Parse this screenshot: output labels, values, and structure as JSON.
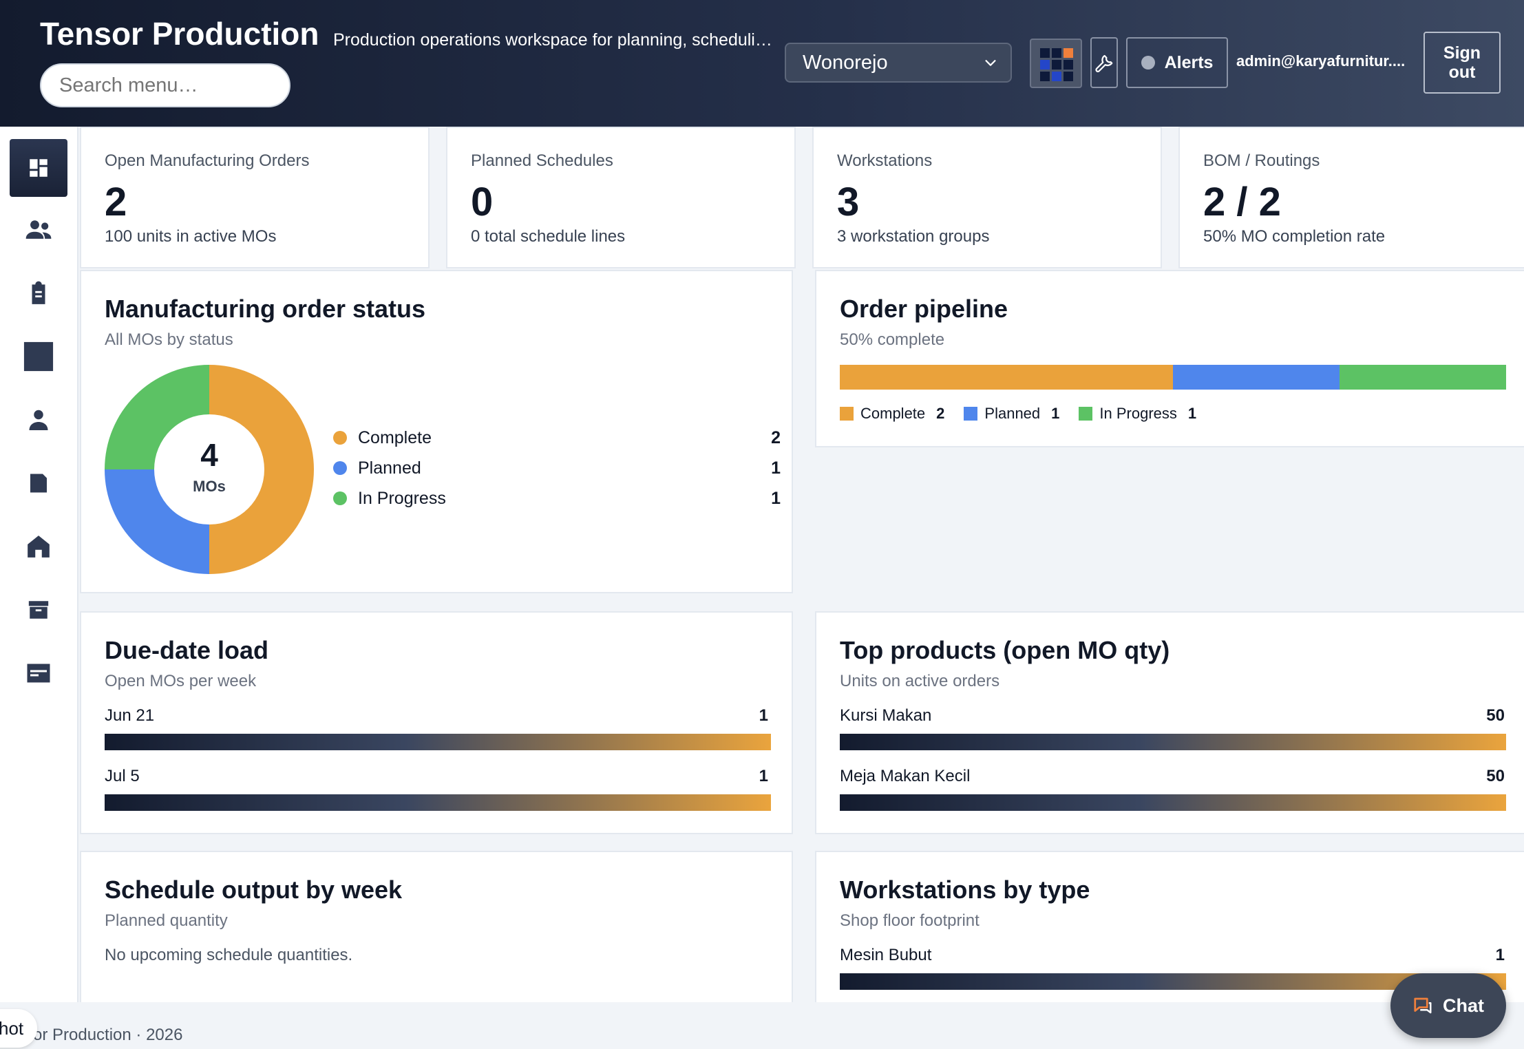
{
  "header": {
    "title": "Tensor Production",
    "subtitle": "Production operations workspace for planning, schedulin…",
    "search_placeholder": "Search menu…",
    "site": "Wonorejo",
    "alerts_label": "Alerts",
    "user_email": "admin@karyafurnitur....",
    "signout_label": "Sign out"
  },
  "sidebar": {
    "items": [
      {
        "icon": "dashboard-icon",
        "active": true
      },
      {
        "icon": "people-icon"
      },
      {
        "icon": "clipboard-icon"
      },
      {
        "icon": "square-icon"
      },
      {
        "icon": "person-icon"
      },
      {
        "icon": "folder-icon"
      },
      {
        "icon": "home-icon"
      },
      {
        "icon": "archive-icon"
      },
      {
        "icon": "card-icon"
      }
    ]
  },
  "stats": [
    {
      "label": "Open Manufacturing Orders",
      "value": "2",
      "sub": "100 units in active MOs"
    },
    {
      "label": "Planned Schedules",
      "value": "0",
      "sub": "0 total schedule lines"
    },
    {
      "label": "Workstations",
      "value": "3",
      "sub": "3 workstation groups"
    },
    {
      "label": "BOM / Routings",
      "value": "2 / 2",
      "sub": "50% MO completion rate"
    }
  ],
  "mo_status": {
    "title": "Manufacturing order status",
    "subtitle": "All MOs by status",
    "center_value": "4",
    "center_label": "MOs",
    "items": [
      {
        "label": "Complete",
        "value": 2,
        "color": "#eaa23b"
      },
      {
        "label": "Planned",
        "value": 1,
        "color": "#4f86ec"
      },
      {
        "label": "In Progress",
        "value": 1,
        "color": "#5cc264"
      }
    ]
  },
  "pipeline": {
    "title": "Order pipeline",
    "subtitle": "50% complete",
    "items": [
      {
        "label": "Complete",
        "value": 2,
        "color": "#eaa23b"
      },
      {
        "label": "Planned",
        "value": 1,
        "color": "#4f86ec"
      },
      {
        "label": "In Progress",
        "value": 1,
        "color": "#5cc264"
      }
    ]
  },
  "due_date": {
    "title": "Due-date load",
    "subtitle": "Open MOs per week",
    "rows": [
      {
        "label": "Jun 21",
        "value": "1",
        "fraction": 1.0
      },
      {
        "label": "Jul 5",
        "value": "1",
        "fraction": 1.0
      }
    ]
  },
  "top_products": {
    "title": "Top products (open MO qty)",
    "subtitle": "Units on active orders",
    "rows": [
      {
        "label": "Kursi Makan",
        "value": "50",
        "fraction": 1.0
      },
      {
        "label": "Meja Makan Kecil",
        "value": "50",
        "fraction": 1.0
      }
    ]
  },
  "schedule_output": {
    "title": "Schedule output by week",
    "subtitle": "Planned quantity",
    "empty": "No upcoming schedule quantities."
  },
  "ws_by_type": {
    "title": "Workstations by type",
    "subtitle": "Shop floor footprint",
    "rows": [
      {
        "label": "Mesin Bubut",
        "value": "1",
        "fraction": 1.0
      }
    ]
  },
  "footer": {
    "text": "or Production · 2026",
    "hot_label": "hot"
  },
  "chat": {
    "label": "Chat"
  }
}
